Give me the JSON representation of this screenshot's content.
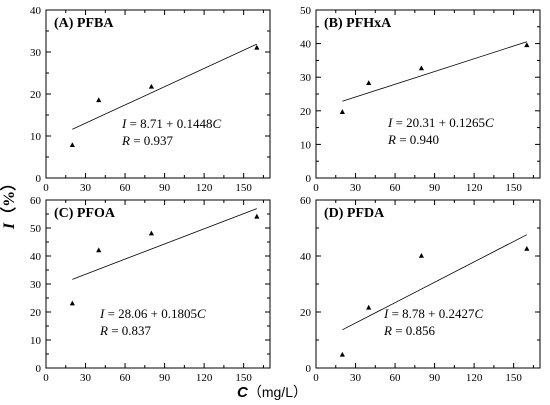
{
  "chart_data": [
    {
      "type": "scatter",
      "title": "(A) PFBA",
      "x": [
        20,
        40,
        80,
        160
      ],
      "y": [
        7.8,
        18.5,
        21.7,
        31
      ],
      "fit": {
        "intercept": 8.71,
        "slope": 0.1448
      },
      "equation": {
        "var_I": "I",
        "rhs": " = 8.71 + 0.1448",
        "var_C": "C",
        "r_label": "R",
        "r_rhs": " = 0.937"
      },
      "xlim": [
        0,
        170
      ],
      "ylim": [
        0,
        40
      ],
      "xticks": [
        0,
        30,
        60,
        90,
        120,
        150
      ],
      "yticks": [
        0,
        10,
        20,
        30,
        40
      ]
    },
    {
      "type": "scatter",
      "title": "(B) PFHxA",
      "x": [
        20,
        40,
        80,
        160
      ],
      "y": [
        19.6,
        28.2,
        32.6,
        39.5
      ],
      "fit": {
        "intercept": 20.31,
        "slope": 0.1265
      },
      "equation": {
        "var_I": "I",
        "rhs": " = 20.31 + 0.1265",
        "var_C": "C",
        "r_label": "R",
        "r_rhs": " = 0.940"
      },
      "xlim": [
        0,
        170
      ],
      "ylim": [
        0,
        50
      ],
      "xticks": [
        0,
        30,
        60,
        90,
        120,
        150
      ],
      "yticks": [
        0,
        10,
        20,
        30,
        40,
        50
      ]
    },
    {
      "type": "scatter",
      "title": "(C) PFOA",
      "x": [
        20,
        40,
        80,
        160
      ],
      "y": [
        23,
        42,
        48,
        54
      ],
      "fit": {
        "intercept": 28.06,
        "slope": 0.1805
      },
      "equation": {
        "var_I": "I",
        "rhs": " = 28.06 + 0.1805",
        "var_C": "C",
        "r_label": "R",
        "r_rhs": " = 0.837"
      },
      "xlim": [
        0,
        170
      ],
      "ylim": [
        0,
        60
      ],
      "xticks": [
        0,
        30,
        60,
        90,
        120,
        150
      ],
      "yticks": [
        0,
        10,
        20,
        30,
        40,
        50,
        60
      ]
    },
    {
      "type": "scatter",
      "title": "(D) PFDA",
      "x": [
        20,
        40,
        80,
        160
      ],
      "y": [
        4.7,
        21.5,
        40,
        42.5
      ],
      "fit": {
        "intercept": 8.78,
        "slope": 0.2427
      },
      "equation": {
        "var_I": "I",
        "rhs": " = 8.78 + 0.2427",
        "var_C": "C",
        "r_label": "R",
        "r_rhs": " = 0.856"
      },
      "xlim": [
        0,
        170
      ],
      "ylim": [
        0,
        60
      ],
      "xticks": [
        0,
        30,
        60,
        90,
        120,
        150
      ],
      "yticks": [
        0,
        20,
        40,
        60
      ]
    }
  ],
  "ylabel": {
    "var": "I",
    "unit": "（%）"
  },
  "xlabel": {
    "var": "C",
    "unit": "（mg/L）"
  }
}
